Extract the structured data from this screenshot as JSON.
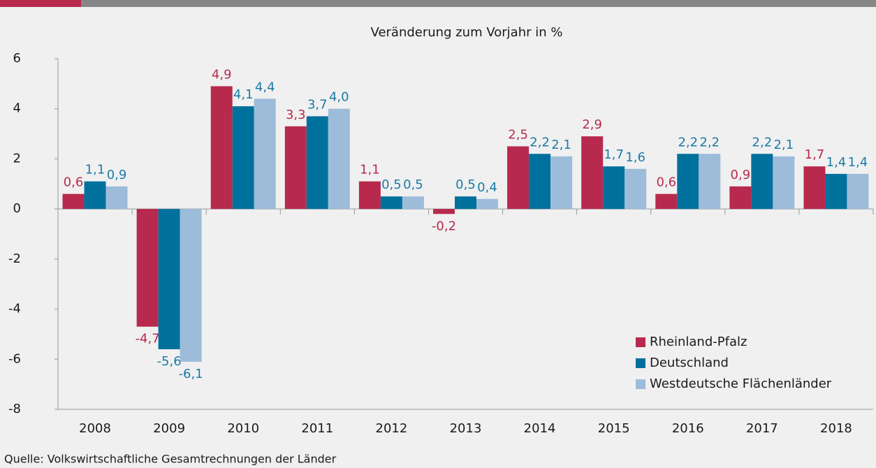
{
  "chart_data": {
    "type": "bar",
    "title": "Veränderung zum Vorjahr in %",
    "source": "Quelle: Volkswirtschaftliche Gesamtrechnungen der Länder",
    "categories": [
      "2008",
      "2009",
      "2010",
      "2011",
      "2012",
      "2013",
      "2014",
      "2015",
      "2016",
      "2017",
      "2018"
    ],
    "series": [
      {
        "name": "Rheinland-Pfalz",
        "color": "#b72a4d",
        "label_color": "#b72a4d",
        "values": [
          0.6,
          -4.7,
          4.9,
          3.3,
          1.1,
          -0.2,
          2.5,
          2.9,
          0.6,
          0.9,
          1.7
        ],
        "value_labels": [
          "0,6",
          "-4,7",
          "4,9",
          "3,3",
          "1,1",
          "-0,2",
          "2,5",
          "2,9",
          "0,6",
          "0,9",
          "1,7"
        ]
      },
      {
        "name": "Deutschland",
        "color": "#00719c",
        "label_color": "#1a7ba6",
        "values": [
          1.1,
          -5.6,
          4.1,
          3.7,
          0.5,
          0.5,
          2.2,
          1.7,
          2.2,
          2.2,
          1.4
        ],
        "value_labels": [
          "1,1",
          "-5,6",
          "4,1",
          "3,7",
          "0,5",
          "0,5",
          "2,2",
          "1,7",
          "2,2",
          "2,2",
          "1,4"
        ]
      },
      {
        "name": "Westdeutsche Flächenländer",
        "color": "#9dbcda",
        "label_color": "#1a7ba6",
        "values": [
          0.9,
          -6.1,
          4.4,
          4.0,
          0.5,
          0.4,
          2.1,
          1.6,
          2.2,
          2.1,
          1.4
        ],
        "value_labels": [
          "0,9",
          "-6,1",
          "4,4",
          "4,0",
          "0,5",
          "0,4",
          "2,1",
          "1,6",
          "2,2",
          "2,1",
          "1,4"
        ]
      }
    ],
    "ylim": [
      -8,
      6
    ],
    "yticks": [
      -8,
      -6,
      -4,
      -2,
      0,
      2,
      4,
      6
    ],
    "grid": false,
    "legend": "lower right"
  }
}
